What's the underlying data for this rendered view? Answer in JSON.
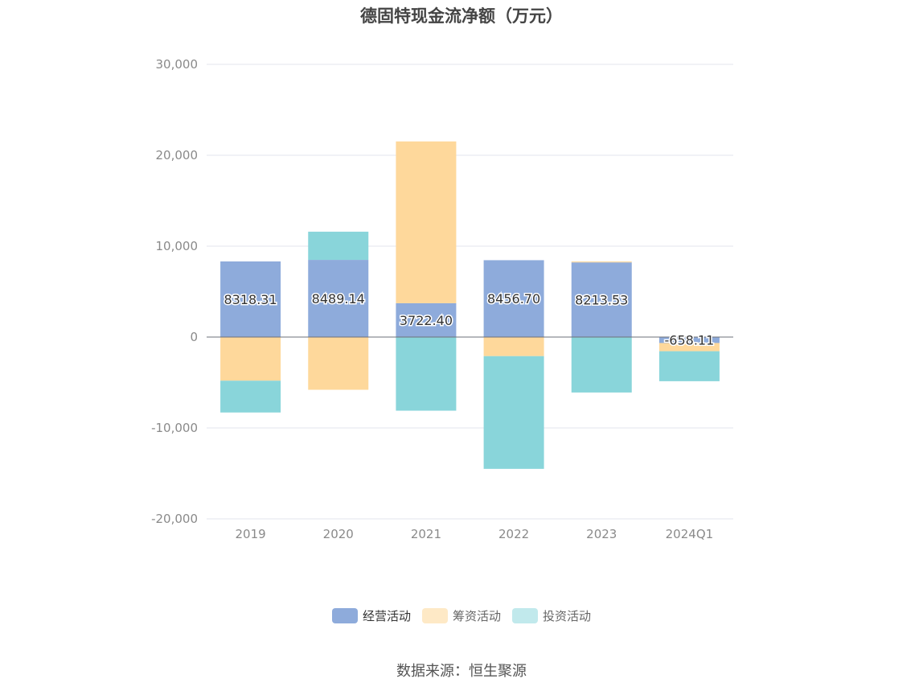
{
  "chart_data": {
    "type": "bar",
    "stacked": true,
    "title": "德固特现金流净额（万元）",
    "categories": [
      "2019",
      "2020",
      "2021",
      "2022",
      "2023",
      "2024Q1"
    ],
    "ylim": [
      -20000,
      30000
    ],
    "yticks": [
      30000,
      20000,
      10000,
      0,
      -10000,
      -20000
    ],
    "ytick_labels": [
      "30,000",
      "20,000",
      "10,000",
      "0",
      "-10,000",
      "-20,000"
    ],
    "grid": true,
    "legend_position": "bottom",
    "series": [
      {
        "name": "经营活动",
        "color": "#8eabdb",
        "values": [
          8318.31,
          8489.14,
          3722.4,
          8456.7,
          8213.53,
          -658.11
        ],
        "labels": [
          "8318.31",
          "8489.14",
          "3722.40",
          "8456.70",
          "8213.53",
          "-658.11"
        ]
      },
      {
        "name": "筹资活动",
        "color": "#fed89b",
        "values": [
          -4800,
          -5800,
          17800,
          -2100,
          100,
          -900
        ]
      },
      {
        "name": "投资活动",
        "color": "#89d5da",
        "values": [
          -3500,
          3100,
          -8100,
          -12400,
          -6100,
          -3300
        ]
      }
    ]
  },
  "legend": {
    "items": [
      {
        "label": "经营活动",
        "color": "#8eabdb",
        "active": true
      },
      {
        "label": "筹资活动",
        "color": "#fee9c6",
        "active": false
      },
      {
        "label": "投资活动",
        "color": "#c1e9ec",
        "active": false
      }
    ]
  },
  "source": "数据来源：恒生聚源"
}
